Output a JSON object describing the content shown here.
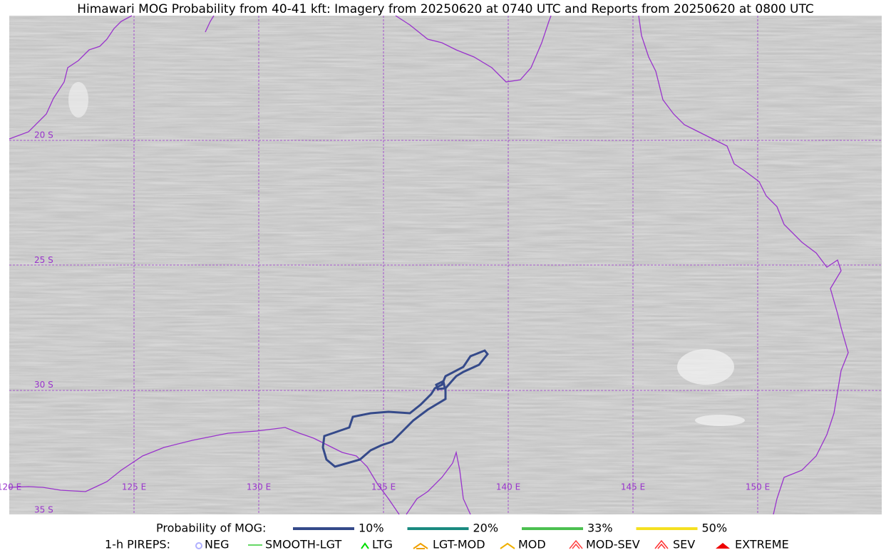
{
  "title": "Himawari MOG Probability from 40-41 kft: Imagery from 20250620 at 0740 UTC and Reports from 20250620 at 0800 UTC",
  "map": {
    "lon_labels": [
      "120 E",
      "125 E",
      "130 E",
      "135 E",
      "140 E",
      "145 E",
      "150 E"
    ],
    "lat_labels": [
      "20 S",
      "25 S",
      "30 S",
      "35 S"
    ]
  },
  "legend": {
    "mog": {
      "label": "Probability of MOG:",
      "items": [
        {
          "label": "10%",
          "color": "#354a8a"
        },
        {
          "label": "20%",
          "color": "#1a8a80"
        },
        {
          "label": "33%",
          "color": "#4cc050"
        },
        {
          "label": "50%",
          "color": "#f5e020"
        }
      ]
    },
    "pireps": {
      "label": "1-h PIREPS:",
      "items": [
        "NEG",
        "SMOOTH-LGT",
        "LTG",
        "LGT-MOD",
        "MOD",
        "MOD-SEV",
        "SEV",
        "EXTREME"
      ]
    }
  }
}
